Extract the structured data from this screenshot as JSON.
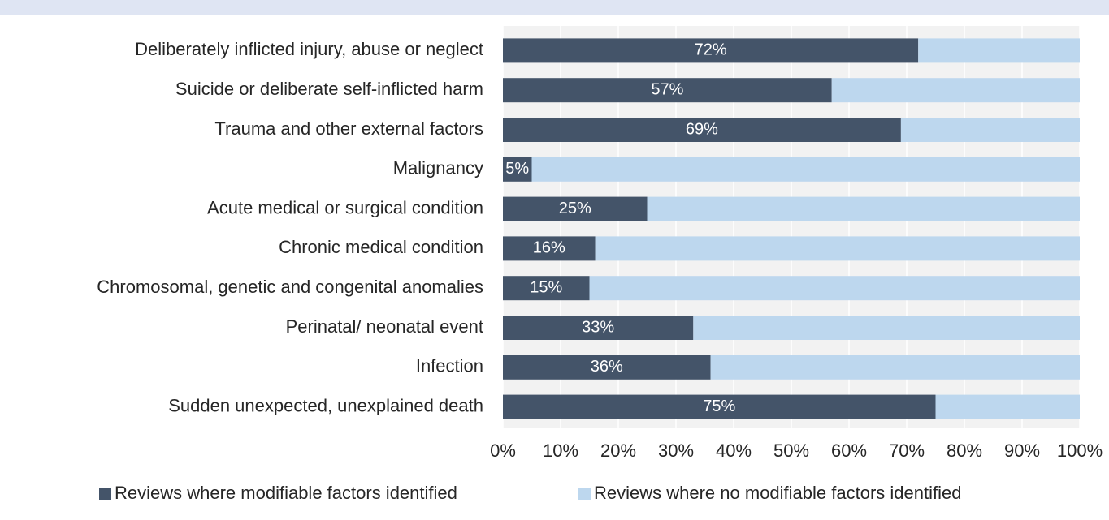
{
  "chart_data": {
    "type": "stacked-bar-horizontal",
    "categories": [
      "Deliberately inflicted injury, abuse or neglect",
      "Suicide or deliberate self-inflicted harm",
      "Trauma and other external factors",
      "Malignancy",
      "Acute medical or surgical condition",
      "Chronic medical condition",
      "Chromosomal, genetic and congenital anomalies",
      "Perinatal/ neonatal event",
      "Infection",
      "Sudden unexpected, unexplained death"
    ],
    "series": [
      {
        "name": "Reviews where modifiable factors identified",
        "color": "#445469",
        "values": [
          72,
          57,
          69,
          5,
          25,
          16,
          15,
          33,
          36,
          75
        ],
        "value_labels": [
          "72%",
          "57%",
          "69%",
          "5%",
          "25%",
          "16%",
          "15%",
          "33%",
          "36%",
          "75%"
        ]
      },
      {
        "name": "Reviews where no modifiable factors identified",
        "color": "#bdd7ee",
        "values": [
          28,
          43,
          31,
          95,
          75,
          84,
          85,
          67,
          64,
          25
        ]
      }
    ],
    "xlim": [
      0,
      100
    ],
    "xticks": [
      {
        "value": 0,
        "label": "0%"
      },
      {
        "value": 10,
        "label": "10%"
      },
      {
        "value": 20,
        "label": "20%"
      },
      {
        "value": 30,
        "label": "30%"
      },
      {
        "value": 40,
        "label": "40%"
      },
      {
        "value": 50,
        "label": "50%"
      },
      {
        "value": 60,
        "label": "60%"
      },
      {
        "value": 70,
        "label": "70%"
      },
      {
        "value": 80,
        "label": "80%"
      },
      {
        "value": 90,
        "label": "90%"
      },
      {
        "value": 100,
        "label": "100%"
      }
    ],
    "grid": true,
    "legend": "bottom"
  }
}
